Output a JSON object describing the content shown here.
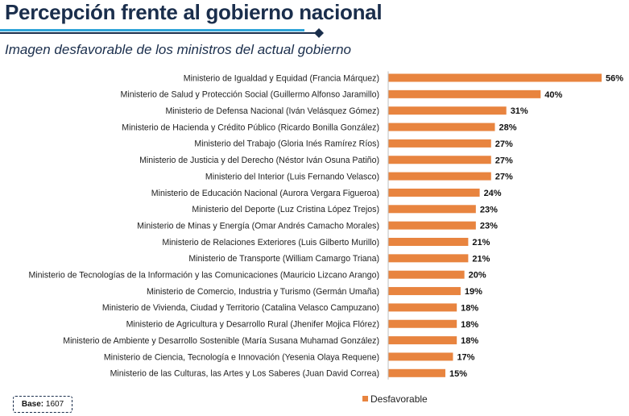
{
  "header": {
    "title": "Percepción frente al gobierno nacional",
    "subtitle": "Imagen desfavorable de los ministros del actual gobierno"
  },
  "footer": {
    "base_label": "Base:",
    "base_value": "1607"
  },
  "colors": {
    "bar": "#e8843f",
    "title": "#1a2e4c",
    "rule_light": "#2fa4d8",
    "rule_dark": "#1a2e4c"
  },
  "chart_data": {
    "type": "bar",
    "orientation": "horizontal",
    "title": "",
    "xlabel": "",
    "ylabel": "",
    "xlim": [
      0,
      56
    ],
    "grid": false,
    "legend_position": "bottom",
    "value_suffix": "%",
    "categories": [
      "Ministerio de Igualdad y Equidad (Francia Márquez)",
      "Ministerio de Salud y Protección Social (Guillermo Alfonso Jaramillo)",
      "Ministerio de Defensa Nacional (Iván Velásquez Gómez)",
      "Ministerio de Hacienda y Crédito Público (Ricardo Bonilla González)",
      "Ministerio del Trabajo (Gloria Inés Ramírez Ríos)",
      "Ministerio de Justicia y del Derecho (Néstor Iván Osuna Patiño)",
      "Ministerio del Interior (Luis Fernando Velasco)",
      "Ministerio de Educación Nacional (Aurora Vergara Figueroa)",
      "Ministerio del Deporte (Luz Cristina López Trejos)",
      "Ministerio de Minas y Energía (Omar Andrés Camacho Morales)",
      "Ministerio de Relaciones Exteriores (Luis Gilberto Murillo)",
      "Ministerio de Transporte (William Camargo Triana)",
      "Ministerio de Tecnologías de la Información y las Comunicaciones (Mauricio Lizcano Arango)",
      "Ministerio de Comercio, Industria y Turismo (Germán Umaña)",
      "Ministerio de Vivienda, Ciudad y Territorio (Catalina Velasco Campuzano)",
      "Ministerio de Agricultura y Desarrollo Rural (Jhenifer Mojica Flórez)",
      "Ministerio de Ambiente y Desarrollo Sostenible (María Susana Muhamad González)",
      "Ministerio de Ciencia, Tecnología e Innovación (Yesenia Olaya Requene)",
      "Ministerio de las Culturas, las Artes y Los Saberes (Juan David Correa)"
    ],
    "series": [
      {
        "name": "Desfavorable",
        "values": [
          56,
          40,
          31,
          28,
          27,
          27,
          27,
          24,
          23,
          23,
          21,
          21,
          20,
          19,
          18,
          18,
          18,
          17,
          15
        ]
      }
    ]
  }
}
